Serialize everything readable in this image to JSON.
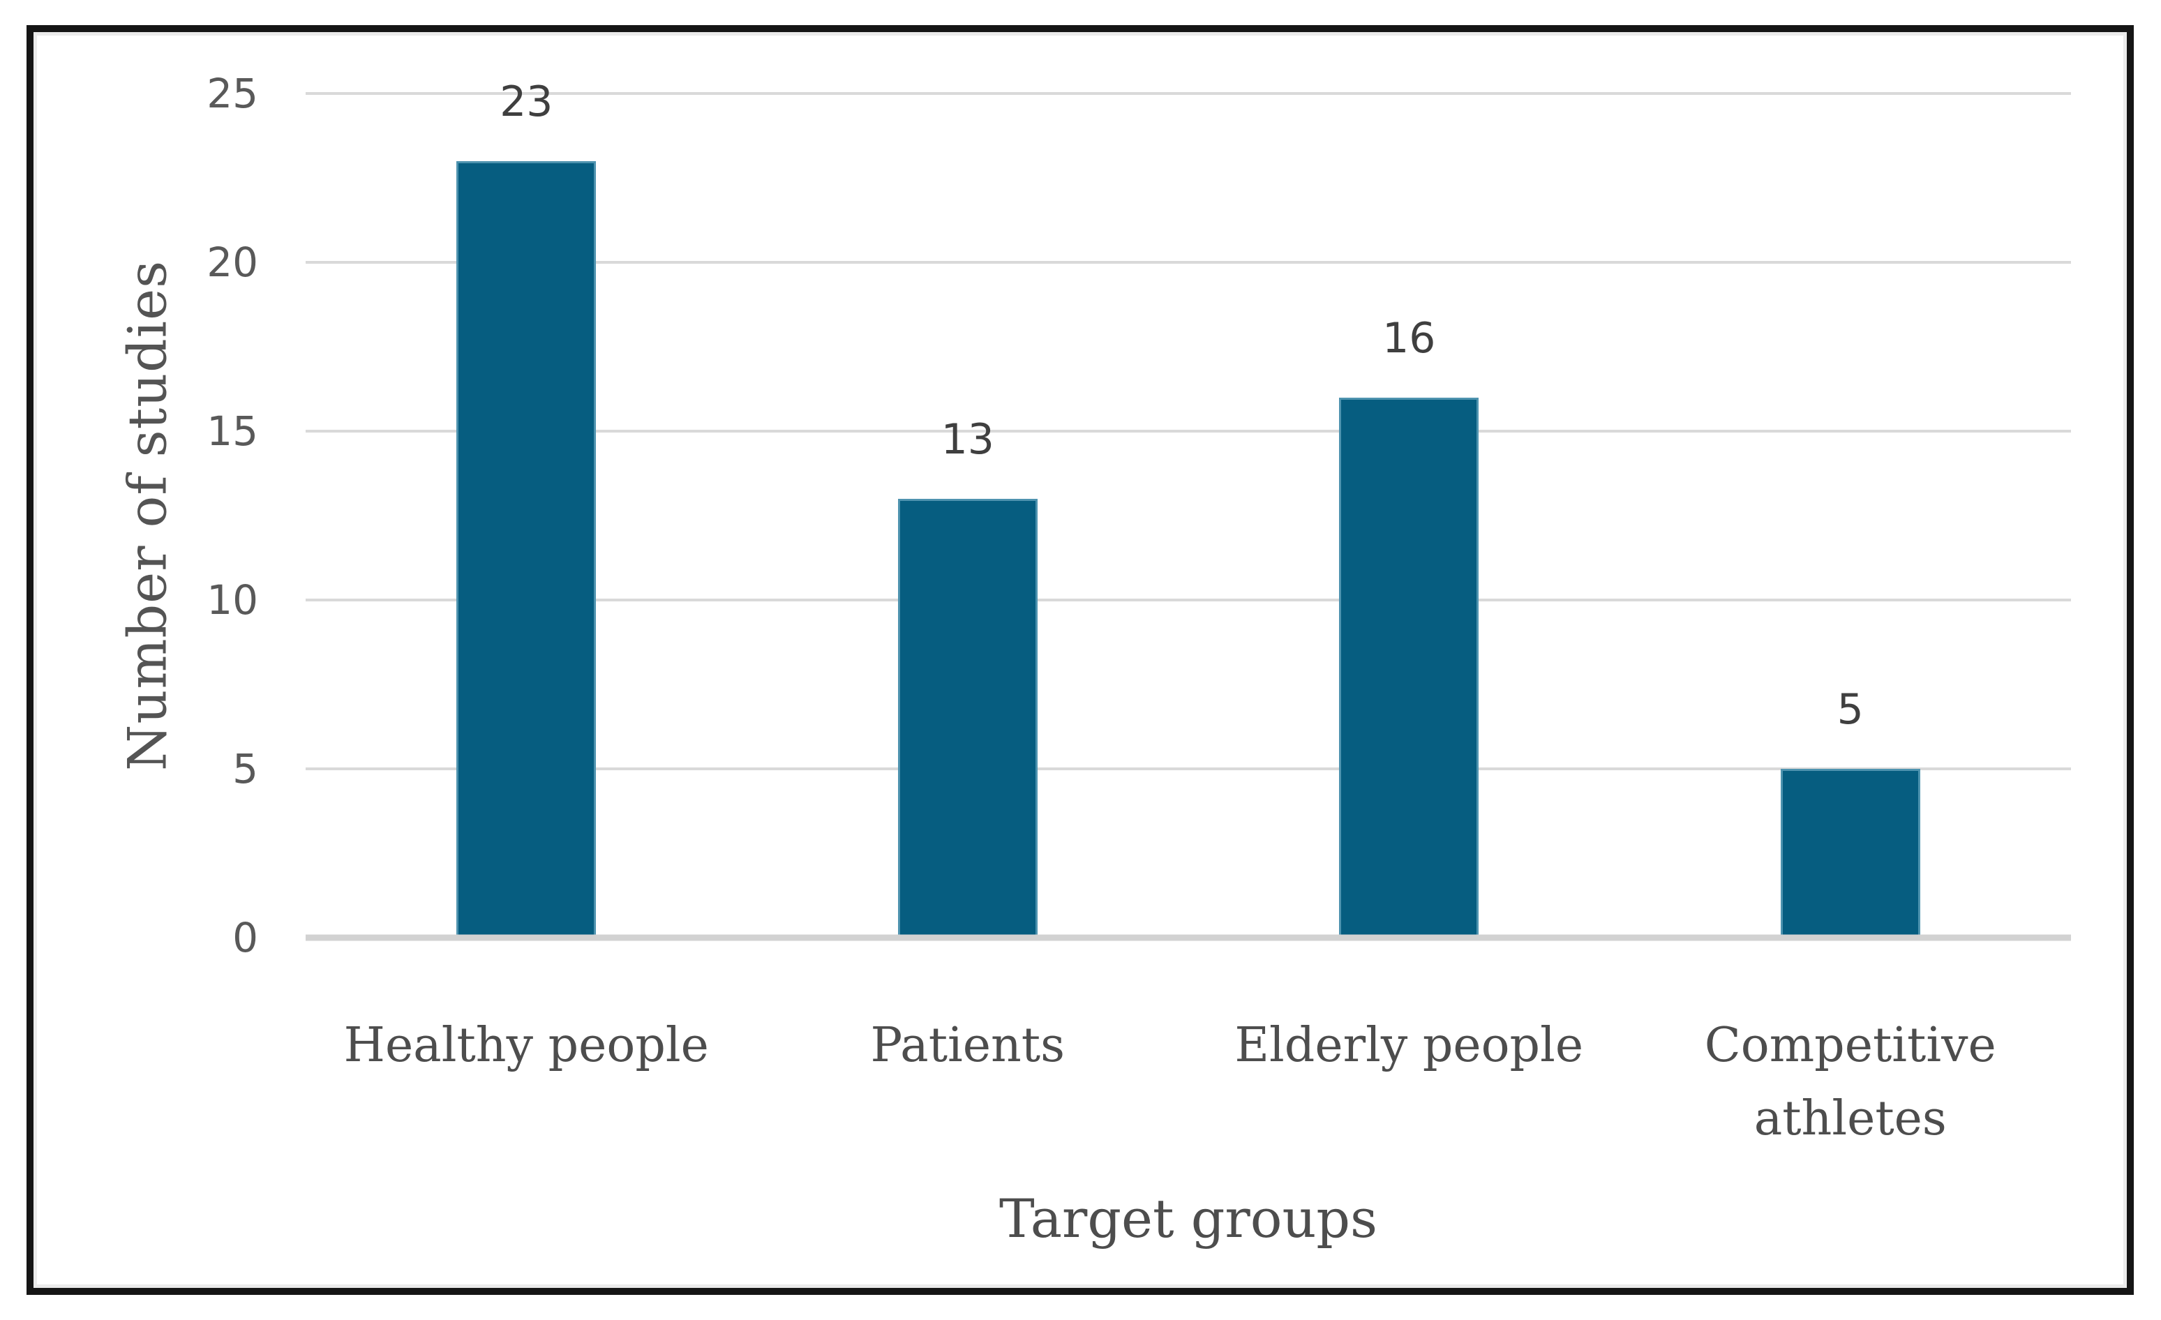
{
  "chart_data": {
    "type": "bar",
    "title": "",
    "categories": [
      "Healthy people",
      "Patients",
      "Elderly people",
      "Competitive athletes"
    ],
    "values": [
      23,
      13,
      16,
      5
    ],
    "data_labels": [
      "23",
      "13",
      "16",
      "5"
    ],
    "xlabel": "Target groups",
    "ylabel": "Number of studies",
    "ylim": [
      0,
      25
    ],
    "yticks": [
      0,
      5,
      10,
      15,
      20,
      25
    ],
    "grid": true,
    "legend_position": "none",
    "bar_color": "#065D80",
    "bar_border_color": "#4E93AF"
  },
  "colors": {
    "gridline": "#D9D9D9",
    "axis_line": "#D2D2D2",
    "tick_label": "#595959",
    "data_label": "#3F3F3F",
    "category_label": "#4D4D4D",
    "axis_title": "#4D4D4D",
    "frame_border": "#151515",
    "background": "#FFFFFF"
  }
}
